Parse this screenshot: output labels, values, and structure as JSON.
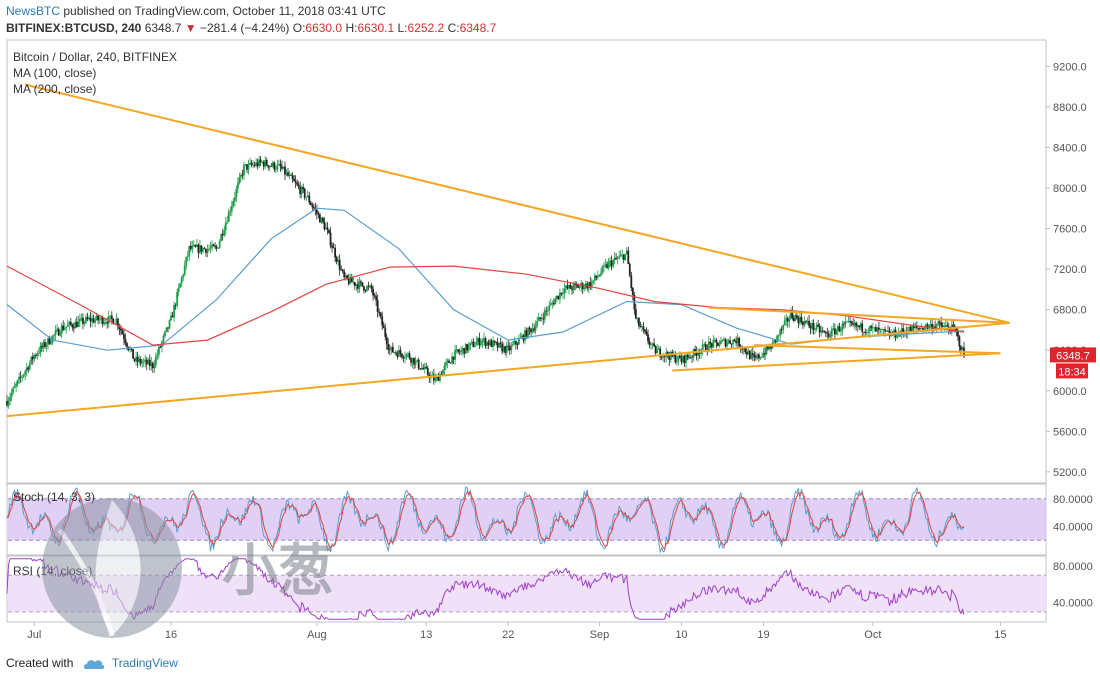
{
  "header": {
    "publisher": "NewsBTC",
    "published_text": "published on TradingView.com, October 11, 2018 03:41 UTC",
    "symbol": "BITFINEX:BTCUSD, 240",
    "last": "6348.7",
    "change": "−281.4 (−4.24%)",
    "o_label": "O:",
    "o_val": "6630.0",
    "h_label": "H:",
    "h_val": "6630.1",
    "l_label": "L:",
    "l_val": "6252.2",
    "c_label": "C:",
    "c_val": "6348.7"
  },
  "footer": {
    "created_with": "Created with",
    "brand": "TradingView"
  },
  "watermark": {
    "text": "小葱"
  },
  "colors": {
    "trendline": "#f5a623",
    "ma100": "#5b9ecf",
    "ma200": "#e0463f",
    "candle_up": "#1f9d4a",
    "candle_down": "#222222",
    "stoch_band": "#dcc8f5",
    "stoch_k": "#5b9ecf",
    "stoch_d": "#e0463f",
    "rsi_band": "#efe2f8",
    "rsi_line": "#a23ec9",
    "price_tag": "#e0242e"
  },
  "chart_data": [
    {
      "type": "candlestick",
      "title": "Bitcoin / Dollar, 240, BITFINEX",
      "indicators": [
        "MA (100, close)",
        "MA (200, close)"
      ],
      "y_ticks": [
        "9200.0",
        "8800.0",
        "8400.0",
        "8000.0",
        "7600.0",
        "7200.0",
        "6800.0",
        "6400.0",
        "6000.0",
        "5600.0",
        "5200.0"
      ],
      "ylim": [
        5100,
        9450
      ],
      "x_ticks": [
        "Jul",
        "16",
        "Aug",
        "13",
        "22",
        "Sep",
        "10",
        "19",
        "Oct",
        "15"
      ],
      "last_price_label": "6348.7",
      "countdown_label": "18:34",
      "price_path": [
        {
          "t": "2018-06-28",
          "v": 5900
        },
        {
          "t": "2018-07-01",
          "v": 6350
        },
        {
          "t": "2018-07-04",
          "v": 6620
        },
        {
          "t": "2018-07-07",
          "v": 6700
        },
        {
          "t": "2018-07-10",
          "v": 6700
        },
        {
          "t": "2018-07-12",
          "v": 6300
        },
        {
          "t": "2018-07-14",
          "v": 6250
        },
        {
          "t": "2018-07-16",
          "v": 6700
        },
        {
          "t": "2018-07-18",
          "v": 7400
        },
        {
          "t": "2018-07-21",
          "v": 7400
        },
        {
          "t": "2018-07-24",
          "v": 8200
        },
        {
          "t": "2018-07-26",
          "v": 8250
        },
        {
          "t": "2018-07-28",
          "v": 8200
        },
        {
          "t": "2018-07-31",
          "v": 7900
        },
        {
          "t": "2018-08-02",
          "v": 7600
        },
        {
          "t": "2018-08-04",
          "v": 7100
        },
        {
          "t": "2018-08-07",
          "v": 7000
        },
        {
          "t": "2018-08-09",
          "v": 6400
        },
        {
          "t": "2018-08-11",
          "v": 6350
        },
        {
          "t": "2018-08-14",
          "v": 6100
        },
        {
          "t": "2018-08-16",
          "v": 6350
        },
        {
          "t": "2018-08-19",
          "v": 6500
        },
        {
          "t": "2018-08-22",
          "v": 6400
        },
        {
          "t": "2018-08-25",
          "v": 6650
        },
        {
          "t": "2018-08-28",
          "v": 7000
        },
        {
          "t": "2018-08-31",
          "v": 7050
        },
        {
          "t": "2018-09-02",
          "v": 7250
        },
        {
          "t": "2018-09-04",
          "v": 7350
        },
        {
          "t": "2018-09-05",
          "v": 6700
        },
        {
          "t": "2018-09-07",
          "v": 6400
        },
        {
          "t": "2018-09-10",
          "v": 6300
        },
        {
          "t": "2018-09-13",
          "v": 6450
        },
        {
          "t": "2018-09-16",
          "v": 6500
        },
        {
          "t": "2018-09-18",
          "v": 6300
        },
        {
          "t": "2018-09-20",
          "v": 6450
        },
        {
          "t": "2018-09-22",
          "v": 6750
        },
        {
          "t": "2018-09-24",
          "v": 6650
        },
        {
          "t": "2018-09-26",
          "v": 6550
        },
        {
          "t": "2018-09-28",
          "v": 6650
        },
        {
          "t": "2018-10-01",
          "v": 6600
        },
        {
          "t": "2018-10-03",
          "v": 6550
        },
        {
          "t": "2018-10-05",
          "v": 6600
        },
        {
          "t": "2018-10-08",
          "v": 6650
        },
        {
          "t": "2018-10-10",
          "v": 6600
        },
        {
          "t": "2018-10-11",
          "v": 6349
        }
      ],
      "ma100_path": [
        {
          "t": "2018-06-28",
          "v": 6850
        },
        {
          "t": "2018-07-03",
          "v": 6500
        },
        {
          "t": "2018-07-09",
          "v": 6400
        },
        {
          "t": "2018-07-15",
          "v": 6450
        },
        {
          "t": "2018-07-21",
          "v": 6900
        },
        {
          "t": "2018-07-27",
          "v": 7500
        },
        {
          "t": "2018-08-01",
          "v": 7800
        },
        {
          "t": "2018-08-04",
          "v": 7780
        },
        {
          "t": "2018-08-10",
          "v": 7400
        },
        {
          "t": "2018-08-16",
          "v": 6800
        },
        {
          "t": "2018-08-22",
          "v": 6500
        },
        {
          "t": "2018-08-28",
          "v": 6580
        },
        {
          "t": "2018-09-04",
          "v": 6880
        },
        {
          "t": "2018-09-10",
          "v": 6850
        },
        {
          "t": "2018-09-16",
          "v": 6620
        },
        {
          "t": "2018-09-22",
          "v": 6460
        },
        {
          "t": "2018-09-28",
          "v": 6520
        },
        {
          "t": "2018-10-05",
          "v": 6560
        },
        {
          "t": "2018-10-11",
          "v": 6590
        }
      ],
      "ma200_path": [
        {
          "t": "2018-06-28",
          "v": 7230
        },
        {
          "t": "2018-07-06",
          "v": 6850
        },
        {
          "t": "2018-07-14",
          "v": 6450
        },
        {
          "t": "2018-07-20",
          "v": 6500
        },
        {
          "t": "2018-07-27",
          "v": 6780
        },
        {
          "t": "2018-08-02",
          "v": 7050
        },
        {
          "t": "2018-08-09",
          "v": 7220
        },
        {
          "t": "2018-08-16",
          "v": 7230
        },
        {
          "t": "2018-08-24",
          "v": 7150
        },
        {
          "t": "2018-09-01",
          "v": 7010
        },
        {
          "t": "2018-09-07",
          "v": 6880
        },
        {
          "t": "2018-09-14",
          "v": 6820
        },
        {
          "t": "2018-09-21",
          "v": 6800
        },
        {
          "t": "2018-09-28",
          "v": 6740
        },
        {
          "t": "2018-10-05",
          "v": 6650
        },
        {
          "t": "2018-10-11",
          "v": 6580
        }
      ],
      "trendlines": [
        {
          "p1": {
            "t": "2018-06-30",
            "v": 9020
          },
          "p2": {
            "t": "2018-10-16",
            "v": 6670
          }
        },
        {
          "p1": {
            "t": "2018-06-28",
            "v": 5750
          },
          "p2": {
            "t": "2018-10-16",
            "v": 6670
          }
        },
        {
          "p1": {
            "t": "2018-09-13",
            "v": 6820
          },
          "p2": {
            "t": "2018-10-16",
            "v": 6670
          }
        },
        {
          "p1": {
            "t": "2018-09-18",
            "v": 6450
          },
          "p2": {
            "t": "2018-10-15",
            "v": 6370
          }
        },
        {
          "p1": {
            "t": "2018-09-09",
            "v": 6200
          },
          "p2": {
            "t": "2018-10-15",
            "v": 6370
          }
        }
      ]
    },
    {
      "type": "line",
      "title": "Stoch (14, 3, 3)",
      "y_ticks": [
        "80.0000",
        "40.0000"
      ],
      "ylim": [
        0,
        100
      ],
      "band": [
        20,
        80
      ]
    },
    {
      "type": "line",
      "title": "RSI (14, close)",
      "y_ticks": [
        "80.0000",
        "40.0000"
      ],
      "ylim": [
        20,
        90
      ],
      "band": [
        30,
        70
      ]
    }
  ]
}
